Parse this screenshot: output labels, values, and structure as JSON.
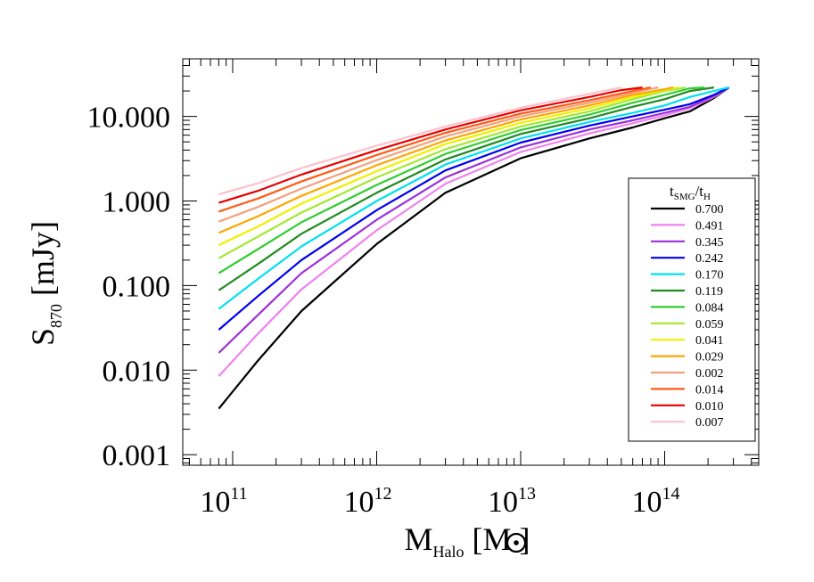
{
  "chart_data": {
    "type": "line",
    "xlabel": {
      "base": "M",
      "sub": "Halo",
      "unit_open": " [M",
      "unit_close": "]"
    },
    "ylabel": {
      "base": "S",
      "sub": "870",
      "unit": " [mJy]"
    },
    "xscale": "log",
    "yscale": "log",
    "xlim": [
      45000000000.0,
      450000000000000.0
    ],
    "ylim": [
      0.00075,
      48
    ],
    "x_ticks": [
      {
        "value": 100000000000.0,
        "base": "10",
        "exp": "11"
      },
      {
        "value": 1000000000000.0,
        "base": "10",
        "exp": "12"
      },
      {
        "value": 10000000000000.0,
        "base": "10",
        "exp": "13"
      },
      {
        "value": 100000000000000.0,
        "base": "10",
        "exp": "14"
      }
    ],
    "y_ticks": [
      {
        "value": 0.001,
        "label": "0.001"
      },
      {
        "value": 0.01,
        "label": "0.010"
      },
      {
        "value": 0.1,
        "label": "0.100"
      },
      {
        "value": 1,
        "label": "1.000"
      },
      {
        "value": 10,
        "label": "10.000"
      }
    ],
    "legend": {
      "title_base": "t",
      "title_sub": "SMG",
      "title_sep": "/t",
      "title_sub2": "H",
      "placement": "right"
    },
    "series": [
      {
        "name": "0.700",
        "color": "#000000",
        "x": [
          80000000000.0,
          150000000000.0,
          300000000000.0,
          1000000000000.0,
          3000000000000.0,
          10000000000000.0,
          30000000000000.0,
          60000000000000.0,
          100000000000000.0,
          150000000000000.0,
          220000000000000.0,
          280000000000000.0
        ],
        "y": [
          0.0035,
          0.013,
          0.05,
          0.31,
          1.25,
          3.2,
          5.5,
          7.4,
          9.5,
          11.5,
          16.5,
          22
        ]
      },
      {
        "name": "0.491",
        "color": "#ee82ee",
        "x": [
          80000000000.0,
          150000000000.0,
          300000000000.0,
          1000000000000.0,
          3000000000000.0,
          10000000000000.0,
          30000000000000.0,
          60000000000000.0,
          100000000000000.0,
          150000000000000.0,
          220000000000000.0,
          280000000000000.0
        ],
        "y": [
          0.0085,
          0.027,
          0.09,
          0.45,
          1.6,
          3.8,
          6.3,
          8.3,
          10.3,
          12.5,
          17,
          22
        ]
      },
      {
        "name": "0.345",
        "color": "#9b30d9",
        "x": [
          80000000000.0,
          150000000000.0,
          300000000000.0,
          1000000000000.0,
          3000000000000.0,
          10000000000000.0,
          30000000000000.0,
          60000000000000.0,
          100000000000000.0,
          150000000000000.0,
          220000000000000.0,
          280000000000000.0
        ],
        "y": [
          0.016,
          0.045,
          0.14,
          0.6,
          1.9,
          4.3,
          7.0,
          9.0,
          11,
          13,
          17.5,
          22
        ]
      },
      {
        "name": "0.242",
        "color": "#0000ee",
        "x": [
          80000000000.0,
          150000000000.0,
          300000000000.0,
          1000000000000.0,
          3000000000000.0,
          10000000000000.0,
          30000000000000.0,
          60000000000000.0,
          100000000000000.0,
          150000000000000.0,
          220000000000000.0,
          280000000000000.0
        ],
        "y": [
          0.03,
          0.075,
          0.2,
          0.78,
          2.3,
          4.9,
          7.8,
          10,
          12,
          14,
          18,
          22
        ]
      },
      {
        "name": "0.170",
        "color": "#00e0f0",
        "x": [
          80000000000.0,
          150000000000.0,
          300000000000.0,
          1000000000000.0,
          3000000000000.0,
          10000000000000.0,
          30000000000000.0,
          60000000000000.0,
          100000000000000.0,
          150000000000000.0,
          220000000000000.0,
          280000000000000.0
        ],
        "y": [
          0.053,
          0.12,
          0.29,
          1.0,
          2.7,
          5.5,
          8.6,
          11,
          13.5,
          17,
          20,
          22
        ]
      },
      {
        "name": "0.119",
        "color": "#228b22",
        "x": [
          80000000000.0,
          150000000000.0,
          300000000000.0,
          1000000000000.0,
          3000000000000.0,
          10000000000000.0,
          30000000000000.0,
          60000000000000.0,
          100000000000000.0,
          150000000000000.0,
          220000000000000.0
        ],
        "y": [
          0.088,
          0.18,
          0.41,
          1.25,
          3.1,
          6.2,
          9.5,
          13,
          16,
          20,
          22
        ]
      },
      {
        "name": "0.084",
        "color": "#32cd32",
        "x": [
          80000000000.0,
          150000000000.0,
          300000000000.0,
          1000000000000.0,
          3000000000000.0,
          10000000000000.0,
          30000000000000.0,
          60000000000000.0,
          100000000000000.0,
          150000000000000.0,
          190000000000000.0
        ],
        "y": [
          0.14,
          0.27,
          0.56,
          1.55,
          3.6,
          6.9,
          10.5,
          14.5,
          18,
          21.5,
          22
        ]
      },
      {
        "name": "0.059",
        "color": "#a2e830",
        "x": [
          80000000000.0,
          150000000000.0,
          300000000000.0,
          1000000000000.0,
          3000000000000.0,
          10000000000000.0,
          30000000000000.0,
          60000000000000.0,
          100000000000000.0,
          140000000000000.0
        ],
        "y": [
          0.21,
          0.38,
          0.73,
          1.9,
          4.1,
          7.6,
          11.5,
          16,
          20,
          22
        ]
      },
      {
        "name": "0.041",
        "color": "#f0f000",
        "x": [
          80000000000.0,
          150000000000.0,
          300000000000.0,
          1000000000000.0,
          3000000000000.0,
          10000000000000.0,
          30000000000000.0,
          60000000000000.0,
          100000000000000.0,
          125000000000000.0
        ],
        "y": [
          0.3,
          0.5,
          0.93,
          2.25,
          4.7,
          8.4,
          12.5,
          17,
          20.5,
          22
        ]
      },
      {
        "name": "0.029",
        "color": "#ffa500",
        "x": [
          80000000000.0,
          150000000000.0,
          300000000000.0,
          1000000000000.0,
          3000000000000.0,
          10000000000000.0,
          30000000000000.0,
          60000000000000.0,
          100000000000000.0,
          115000000000000.0
        ],
        "y": [
          0.42,
          0.66,
          1.15,
          2.65,
          5.2,
          9.2,
          13.5,
          18,
          21,
          22
        ]
      },
      {
        "name": "0.002",
        "color": "#f4a080",
        "x": [
          80000000000.0,
          150000000000.0,
          300000000000.0,
          1000000000000.0,
          3000000000000.0,
          10000000000000.0,
          30000000000000.0,
          60000000000000.0,
          90000000000000.0
        ],
        "y": [
          0.57,
          0.85,
          1.4,
          3.05,
          5.8,
          10,
          14.5,
          19,
          22
        ]
      },
      {
        "name": "0.014",
        "color": "#ff5a14",
        "x": [
          80000000000.0,
          150000000000.0,
          300000000000.0,
          1000000000000.0,
          3000000000000.0,
          10000000000000.0,
          30000000000000.0,
          60000000000000.0,
          80000000000000.0
        ],
        "y": [
          0.75,
          1.07,
          1.7,
          3.5,
          6.4,
          10.8,
          15.5,
          20,
          22
        ]
      },
      {
        "name": "0.010",
        "color": "#e60000",
        "x": [
          80000000000.0,
          150000000000.0,
          300000000000.0,
          1000000000000.0,
          3000000000000.0,
          10000000000000.0,
          30000000000000.0,
          50000000000000.0,
          70000000000000.0
        ],
        "y": [
          0.95,
          1.32,
          2.05,
          4.0,
          7.0,
          11.8,
          17,
          20.5,
          22
        ]
      },
      {
        "name": "0.007",
        "color": "#ffc0cb",
        "x": [
          80000000000.0,
          150000000000.0,
          300000000000.0,
          1000000000000.0,
          3000000000000.0,
          10000000000000.0,
          30000000000000.0,
          50000000000000.0
        ],
        "y": [
          1.2,
          1.62,
          2.45,
          4.5,
          7.6,
          12.7,
          18.5,
          22
        ]
      }
    ]
  }
}
